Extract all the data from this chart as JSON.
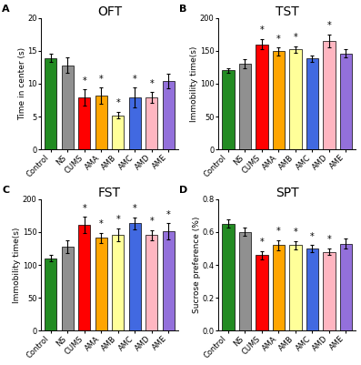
{
  "categories": [
    "Control",
    "NS",
    "CUMS",
    "AMA",
    "AMB",
    "AMC",
    "AMD",
    "AME"
  ],
  "bar_colors": [
    "#228B22",
    "#909090",
    "#FF0000",
    "#FFA500",
    "#FFFF99",
    "#4169E1",
    "#FFB6C1",
    "#9370DB"
  ],
  "OFT": {
    "title": "OFT",
    "ylabel": "Time in center (s)",
    "values": [
      13.9,
      12.8,
      7.9,
      8.2,
      5.2,
      7.9,
      7.9,
      10.4
    ],
    "errors": [
      0.6,
      1.2,
      1.2,
      1.2,
      0.5,
      1.5,
      0.8,
      1.1
    ],
    "stars": [
      false,
      false,
      true,
      true,
      true,
      true,
      true,
      false
    ],
    "ylim": [
      0,
      20
    ],
    "yticks": [
      0,
      5,
      10,
      15,
      20
    ]
  },
  "TST": {
    "title": "TST",
    "ylabel": "Immobility time(s)",
    "values": [
      120,
      130,
      160,
      149,
      152,
      138,
      165,
      146
    ],
    "errors": [
      4,
      7,
      8,
      6,
      5,
      5,
      10,
      6
    ],
    "stars": [
      false,
      false,
      true,
      true,
      true,
      false,
      true,
      false
    ],
    "ylim": [
      0,
      200
    ],
    "yticks": [
      0,
      50,
      100,
      150,
      200
    ]
  },
  "FST": {
    "title": "FST",
    "ylabel": "Immobility time(s)",
    "values": [
      110,
      128,
      161,
      141,
      146,
      163,
      145,
      151
    ],
    "errors": [
      5,
      10,
      12,
      8,
      10,
      9,
      8,
      12
    ],
    "stars": [
      false,
      false,
      true,
      true,
      true,
      true,
      true,
      true
    ],
    "ylim": [
      0,
      200
    ],
    "yticks": [
      0,
      50,
      100,
      150,
      200
    ]
  },
  "SPT": {
    "title": "SPT",
    "ylabel": "Sucrose preference (%)",
    "values": [
      0.65,
      0.6,
      0.46,
      0.52,
      0.52,
      0.5,
      0.48,
      0.53
    ],
    "errors": [
      0.025,
      0.025,
      0.025,
      0.03,
      0.025,
      0.02,
      0.02,
      0.03
    ],
    "stars": [
      false,
      false,
      true,
      true,
      true,
      true,
      true,
      false
    ],
    "ylim": [
      0,
      0.8
    ],
    "yticks": [
      0.0,
      0.2,
      0.4,
      0.6,
      0.8
    ]
  },
  "panel_labels": [
    "A",
    "B",
    "C",
    "D"
  ],
  "background_color": "#FFFFFF",
  "edge_color": "#000000",
  "error_color": "#000000",
  "star_color": "#000000",
  "title_fontsize": 10,
  "label_fontsize": 6.5,
  "tick_fontsize": 6,
  "panel_label_fontsize": 8
}
